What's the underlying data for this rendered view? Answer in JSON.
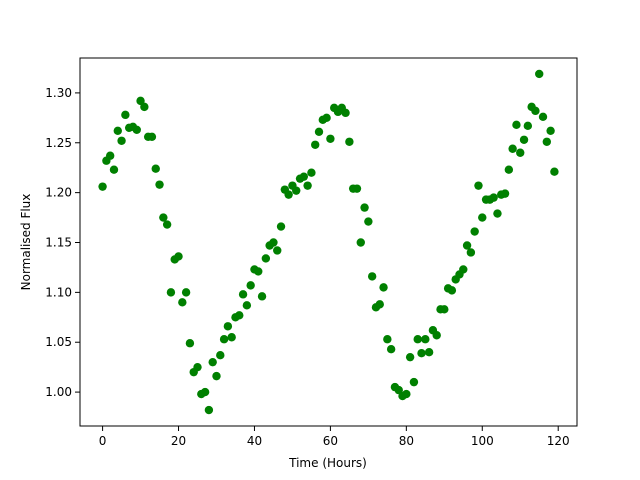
{
  "chart_data": {
    "type": "scatter",
    "xlabel": "Time (Hours)",
    "ylabel": "Normalised Flux",
    "color": "#008000",
    "x": [
      0,
      1,
      2,
      3,
      4,
      5,
      6,
      7,
      8,
      9,
      10,
      11,
      12,
      13,
      14,
      15,
      16,
      17,
      18,
      19,
      20,
      21,
      22,
      23,
      24,
      25,
      26,
      27,
      28,
      29,
      30,
      31,
      32,
      33,
      34,
      35,
      36,
      37,
      38,
      39,
      40,
      41,
      42,
      43,
      44,
      45,
      46,
      47,
      48,
      49,
      50,
      51,
      52,
      53,
      54,
      55,
      56,
      57,
      58,
      59,
      60,
      61,
      62,
      63,
      64,
      65,
      66,
      67,
      68,
      69,
      70,
      71,
      72,
      73,
      74,
      75,
      76,
      77,
      78,
      79,
      80,
      81,
      82,
      83,
      84,
      85,
      86,
      87,
      88,
      89,
      90,
      91,
      92,
      93,
      94,
      95,
      96,
      97,
      98,
      99,
      100,
      101,
      102,
      103,
      104,
      105,
      106,
      107,
      108,
      109,
      110,
      111,
      112,
      113,
      114,
      115,
      116,
      117,
      118,
      119
    ],
    "values": [
      1.206,
      1.232,
      1.237,
      1.223,
      1.262,
      1.252,
      1.278,
      1.265,
      1.266,
      1.263,
      1.292,
      1.286,
      1.256,
      1.256,
      1.224,
      1.208,
      1.175,
      1.168,
      1.1,
      1.133,
      1.136,
      1.09,
      1.1,
      1.049,
      1.02,
      1.025,
      0.998,
      1.0,
      0.982,
      1.03,
      1.016,
      1.037,
      1.053,
      1.066,
      1.055,
      1.075,
      1.077,
      1.098,
      1.087,
      1.107,
      1.123,
      1.121,
      1.096,
      1.134,
      1.147,
      1.15,
      1.142,
      1.166,
      1.203,
      1.198,
      1.207,
      1.202,
      1.214,
      1.216,
      1.207,
      1.22,
      1.248,
      1.261,
      1.273,
      1.275,
      1.254,
      1.285,
      1.281,
      1.285,
      1.28,
      1.251,
      1.204,
      1.204,
      1.15,
      1.185,
      1.171,
      1.116,
      1.085,
      1.088,
      1.105,
      1.053,
      1.043,
      1.005,
      1.002,
      0.996,
      0.998,
      1.035,
      1.01,
      1.053,
      1.039,
      1.053,
      1.04,
      1.062,
      1.057,
      1.083,
      1.083,
      1.104,
      1.102,
      1.113,
      1.118,
      1.123,
      1.147,
      1.14,
      1.161,
      1.207,
      1.175,
      1.193,
      1.193,
      1.195,
      1.179,
      1.198,
      1.199,
      1.223,
      1.244,
      1.268,
      1.24,
      1.253,
      1.267,
      1.286,
      1.282,
      1.319,
      1.276,
      1.251,
      1.262,
      1.221
    ],
    "xlim": [
      -5.95,
      124.95
    ],
    "ylim": [
      0.966,
      1.335
    ],
    "xticks": [
      0,
      20,
      40,
      60,
      80,
      100,
      120
    ],
    "yticks": [
      {
        "value": 1.0,
        "label": "1.00"
      },
      1.05,
      {
        "value": 1.1,
        "label": "1.10"
      },
      1.15,
      {
        "value": 1.2,
        "label": "1.20"
      },
      1.25,
      {
        "value": 1.3,
        "label": "1.30"
      }
    ]
  }
}
